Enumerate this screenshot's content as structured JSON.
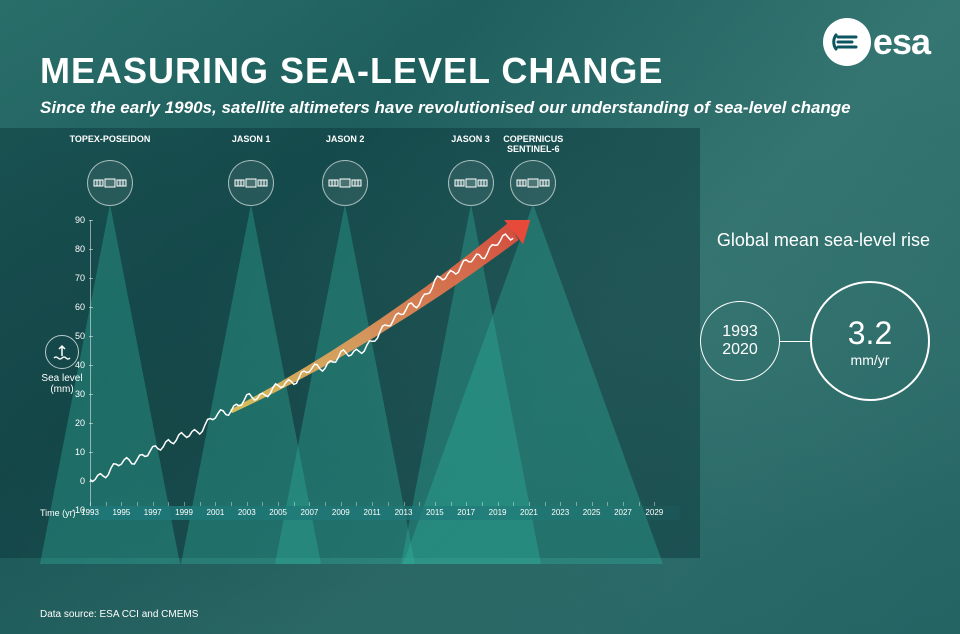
{
  "meta": {
    "title": "MEASURING SEA-LEVEL CHANGE",
    "subtitle": "Since the early 1990s, satellite altimeters have revolutionised our understanding of sea-level change",
    "data_source": "Data source: ESA CCI and CMEMS",
    "logo_text": "esa",
    "title_fontsize": 36,
    "subtitle_fontsize": 17,
    "title_color": "#ffffff",
    "background_colors": [
      "#2a6e6a",
      "#1a5a5a",
      "#3a7a76"
    ]
  },
  "satellites": [
    {
      "label": "TOPEX-POSEIDON",
      "start_year": 1993,
      "beam_width": 140
    },
    {
      "label": "JASON 1",
      "start_year": 2002,
      "beam_width": 140
    },
    {
      "label": "JASON 2",
      "start_year": 2008,
      "beam_width": 140
    },
    {
      "label": "JASON 3",
      "start_year": 2016,
      "beam_width": 140
    },
    {
      "label": "COPERNICUS\nSENTINEL-6",
      "start_year": 2020,
      "beam_width": 260
    }
  ],
  "chart": {
    "type": "line",
    "ylabel": "Sea level\n(mm)",
    "xlabel": "Time (yr)",
    "ylim": [
      -10,
      90
    ],
    "ytick_step": 10,
    "yticks": [
      -10,
      0,
      10,
      20,
      30,
      40,
      50,
      60,
      70,
      80,
      90
    ],
    "xlim": [
      1993,
      2030
    ],
    "xticks": [
      1993,
      1995,
      1997,
      1999,
      2001,
      2003,
      2005,
      2007,
      2009,
      2011,
      2013,
      2015,
      2017,
      2019,
      2021,
      2023,
      2025,
      2027,
      2029
    ],
    "line_color": "#ffffff",
    "line_width": 1.5,
    "arrow_gradient": [
      "#e8c85a",
      "#e8935a",
      "#e84a3a"
    ],
    "beam_color": "rgba(50,180,160,0.35)",
    "axis_color": "rgba(255,255,255,0.5)",
    "data_years": [
      1993,
      1994,
      1995,
      1996,
      1997,
      1998,
      1999,
      2000,
      2001,
      2002,
      2003,
      2004,
      2005,
      2006,
      2007,
      2008,
      2009,
      2010,
      2011,
      2012,
      2013,
      2014,
      2015,
      2016,
      2017,
      2018,
      2019,
      2020
    ],
    "data_mm": [
      0,
      3,
      6,
      8,
      10,
      14,
      15,
      18,
      22,
      25,
      28,
      30,
      32,
      35,
      38,
      40,
      43,
      45,
      47,
      55,
      58,
      62,
      68,
      72,
      75,
      78,
      82,
      85
    ]
  },
  "stats": {
    "heading": "Global mean sea-level rise",
    "period_start": "1993",
    "period_end": "2020",
    "rate_value": "3.2",
    "rate_unit": "mm/yr",
    "circle_border_color": "#ffffff"
  }
}
